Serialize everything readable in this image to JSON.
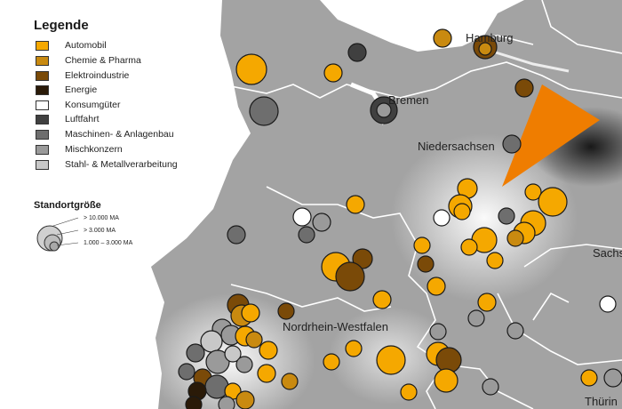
{
  "legend": {
    "title": "Legende",
    "items": [
      {
        "label": "Automobil",
        "color": "#f5a800"
      },
      {
        "label": "Chemie & Pharma",
        "color": "#c98a10"
      },
      {
        "label": "Elektroindustrie",
        "color": "#7a4a08"
      },
      {
        "label": "Energie",
        "color": "#2a1a08"
      },
      {
        "label": "Konsumgüter",
        "color": "#ffffff"
      },
      {
        "label": "Luftfahrt",
        "color": "#404040"
      },
      {
        "label": "Maschinen- & Anlagenbau",
        "color": "#6e6e6e"
      },
      {
        "label": "Mischkonzern",
        "color": "#9a9a9a"
      },
      {
        "label": "Stahl- & Metallverarbeitung",
        "color": "#c8c8c8"
      }
    ]
  },
  "size_legend": {
    "title": "Standortgröße",
    "levels": [
      "> 10.000 MA",
      "> 3.000 MA",
      "1.000 – 3.000 MA"
    ]
  },
  "map_labels": {
    "hamburg": "Hamburg",
    "bremen": "Bremen",
    "niedersachsen": "Niedersachsen",
    "nrw": "Nordrhein-Westfalen",
    "sachsen": "Sachs",
    "thueringen": "Thürin"
  }
}
